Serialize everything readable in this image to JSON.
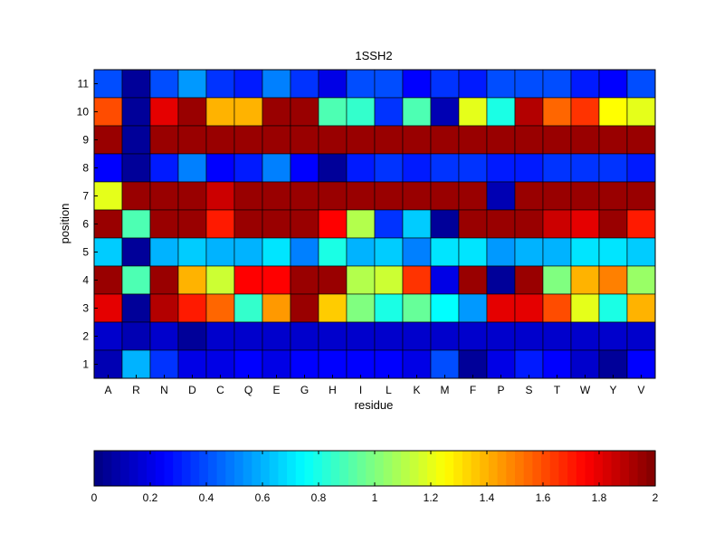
{
  "chart_data": [
    {
      "type": "heatmap",
      "title": "1SSH2",
      "xlabel": "residue",
      "ylabel": "position",
      "x_categories": [
        "A",
        "R",
        "N",
        "D",
        "C",
        "Q",
        "E",
        "G",
        "H",
        "I",
        "L",
        "K",
        "M",
        "F",
        "P",
        "S",
        "T",
        "W",
        "Y",
        "V"
      ],
      "y_categories": [
        "11",
        "10",
        "9",
        "8",
        "7",
        "6",
        "5",
        "4",
        "3",
        "2",
        "1"
      ],
      "values": [
        [
          0.4,
          0.05,
          0.4,
          0.55,
          0.35,
          0.3,
          0.5,
          0.35,
          0.2,
          0.4,
          0.4,
          0.25,
          0.35,
          0.3,
          0.4,
          0.4,
          0.4,
          0.3,
          0.25,
          0.4
        ],
        [
          1.6,
          0.05,
          1.8,
          1.95,
          1.4,
          1.4,
          1.95,
          1.95,
          0.9,
          0.85,
          0.35,
          0.9,
          0.1,
          1.2,
          0.8,
          1.9,
          1.55,
          1.65,
          1.25,
          1.2
        ],
        [
          1.95,
          0.05,
          1.95,
          1.95,
          1.95,
          1.95,
          1.95,
          1.95,
          1.95,
          1.95,
          1.95,
          1.95,
          1.95,
          1.95,
          1.95,
          1.95,
          1.95,
          1.95,
          1.95,
          1.95
        ],
        [
          0.25,
          0.05,
          0.3,
          0.5,
          0.25,
          0.3,
          0.5,
          0.25,
          0.05,
          0.3,
          0.35,
          0.3,
          0.35,
          0.35,
          0.3,
          0.3,
          0.35,
          0.35,
          0.35,
          0.3
        ],
        [
          1.2,
          1.95,
          1.95,
          1.95,
          1.85,
          1.95,
          1.95,
          1.95,
          1.95,
          1.95,
          1.95,
          1.95,
          1.95,
          1.95,
          0.1,
          1.95,
          1.95,
          1.95,
          1.95,
          1.95
        ],
        [
          1.95,
          0.9,
          1.95,
          1.95,
          1.7,
          1.95,
          1.95,
          1.95,
          1.75,
          1.1,
          0.35,
          0.65,
          0.05,
          1.95,
          1.95,
          1.95,
          1.85,
          1.8,
          1.95,
          1.7
        ],
        [
          0.65,
          0.05,
          0.6,
          0.65,
          0.6,
          0.6,
          0.7,
          0.5,
          0.8,
          0.6,
          0.65,
          0.5,
          0.7,
          0.7,
          0.55,
          0.6,
          0.6,
          0.7,
          0.7,
          0.65
        ],
        [
          1.95,
          0.9,
          1.95,
          1.4,
          1.15,
          1.75,
          1.75,
          1.95,
          1.95,
          1.1,
          1.15,
          1.65,
          0.2,
          1.95,
          0.05,
          1.95,
          1.0,
          1.4,
          1.5,
          1.05
        ],
        [
          1.8,
          0.05,
          1.9,
          1.7,
          1.55,
          0.85,
          1.45,
          1.95,
          1.35,
          1.0,
          0.8,
          0.95,
          0.75,
          0.55,
          1.8,
          1.8,
          1.6,
          1.2,
          0.8,
          1.4
        ],
        [
          0.15,
          0.1,
          0.15,
          0.05,
          0.15,
          0.15,
          0.15,
          0.15,
          0.15,
          0.15,
          0.15,
          0.15,
          0.15,
          0.15,
          0.15,
          0.15,
          0.15,
          0.15,
          0.15,
          0.15
        ],
        [
          0.1,
          0.6,
          0.35,
          0.2,
          0.2,
          0.25,
          0.2,
          0.25,
          0.25,
          0.25,
          0.25,
          0.2,
          0.4,
          0.05,
          0.2,
          0.3,
          0.25,
          0.15,
          0.05,
          0.25
        ]
      ],
      "zlim": [
        0,
        2
      ],
      "colormap": "jet",
      "grid": true
    },
    {
      "type": "colorbar",
      "orientation": "horizontal",
      "range": [
        0,
        2
      ],
      "ticks": [
        0,
        0.2,
        0.4,
        0.6,
        0.8,
        1,
        1.2,
        1.4,
        1.6,
        1.8,
        2
      ],
      "tick_labels": [
        "0",
        "0.2",
        "0.4",
        "0.6",
        "0.8",
        "1",
        "1.2",
        "1.4",
        "1.6",
        "1.8",
        "2"
      ],
      "colormap": "jet"
    }
  ]
}
